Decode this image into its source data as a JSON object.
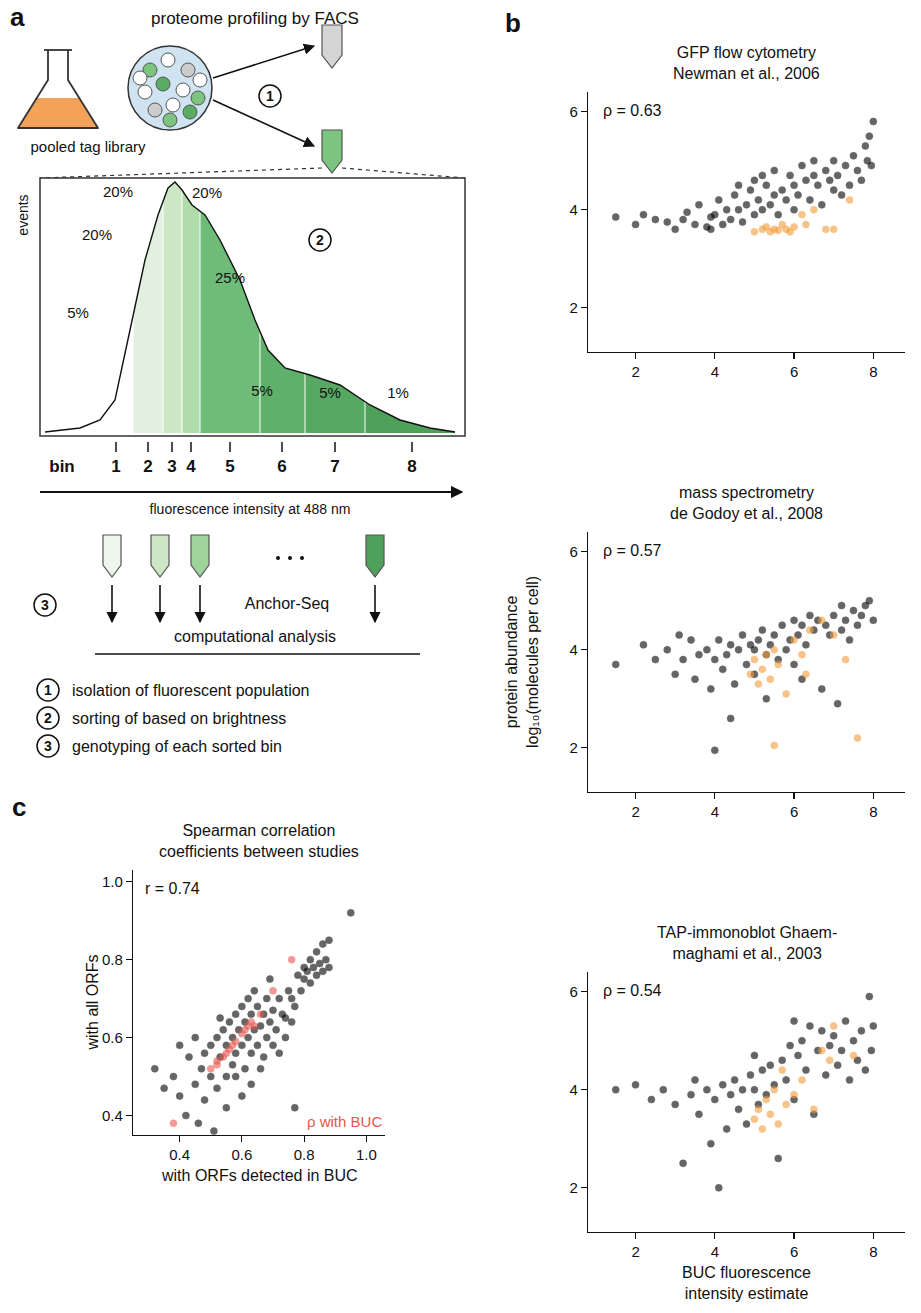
{
  "diagram": {
    "label": "a",
    "title": "proteome profiling by FACS",
    "library_label": "pooled tag library",
    "histogram": {
      "y_label": "events",
      "x_label": "fluorescence intensity at 488 nm",
      "bin_title": "bin",
      "bins": [
        {
          "label": "1",
          "share": "5%"
        },
        {
          "label": "2",
          "share": "20%"
        },
        {
          "label": "3",
          "share": "20%"
        },
        {
          "label": "4",
          "share": "20%"
        },
        {
          "label": "5",
          "share": "25%"
        },
        {
          "label": "6",
          "share": "5%"
        },
        {
          "label": "7",
          "share": "5%"
        },
        {
          "label": "8",
          "share": "1%"
        }
      ]
    },
    "sequencing": "Anchor-Seq",
    "analysis": "computational analysis",
    "steps": [
      {
        "number": "1",
        "text": "isolation of fluorescent population"
      },
      {
        "number": "2",
        "text": "sorting of based on brightness"
      },
      {
        "number": "3",
        "text": "genotyping of each sorted bin"
      }
    ]
  },
  "chart_data": [
    {
      "type": "scatter",
      "panel_label": "b",
      "title": [
        "GFP flow cytometry",
        "Newman et al., 2006"
      ],
      "annotations": [
        "ρ = 0.63"
      ],
      "xlim": [
        0.8,
        8.8
      ],
      "ylim": [
        1.1,
        6.4
      ],
      "xticks": [
        2,
        4,
        6,
        8
      ],
      "yticks": [
        2,
        4,
        6
      ],
      "grid": false,
      "series": [
        {
          "color": "#000000",
          "marker": "circle",
          "x": [
            1.5,
            2.2,
            2.5,
            2.8,
            3.0,
            3.2,
            3.3,
            3.5,
            3.6,
            3.8,
            3.9,
            4.0,
            4.1,
            4.2,
            4.3,
            4.4,
            4.5,
            4.6,
            4.7,
            4.8,
            4.9,
            5.0,
            5.0,
            5.1,
            5.2,
            5.3,
            5.4,
            5.5,
            5.5,
            5.6,
            5.7,
            5.8,
            5.9,
            6.0,
            6.0,
            6.1,
            6.2,
            6.3,
            6.4,
            6.5,
            6.6,
            6.7,
            6.8,
            6.9,
            7.0,
            7.0,
            7.1,
            7.2,
            7.3,
            7.4,
            7.5,
            7.6,
            7.7,
            7.8,
            7.9,
            8.0,
            7.95,
            7.85,
            6.5,
            5.2,
            4.6,
            3.9,
            2.0
          ],
          "y": [
            3.85,
            3.9,
            3.8,
            3.75,
            3.6,
            3.8,
            3.95,
            3.7,
            4.1,
            3.65,
            3.85,
            3.9,
            4.2,
            3.7,
            4.0,
            3.8,
            4.3,
            4.0,
            3.75,
            4.1,
            4.4,
            3.9,
            4.6,
            4.2,
            4.0,
            4.5,
            4.1,
            4.3,
            4.8,
            3.9,
            4.4,
            4.2,
            4.7,
            4.0,
            4.5,
            4.3,
            4.9,
            4.6,
            4.2,
            4.7,
            4.5,
            4.1,
            4.8,
            4.6,
            4.4,
            5.0,
            4.7,
            4.3,
            4.9,
            4.5,
            5.1,
            4.8,
            4.6,
            5.3,
            5.5,
            5.8,
            4.9,
            5.0,
            5.0,
            4.7,
            4.5,
            3.6,
            3.7
          ]
        },
        {
          "color": "#f39c3a",
          "marker": "circle",
          "x": [
            5.0,
            5.2,
            5.3,
            5.4,
            5.5,
            5.6,
            5.7,
            5.8,
            6.0,
            6.2,
            6.3,
            6.5,
            6.8,
            7.0,
            7.4,
            5.9
          ],
          "y": [
            3.55,
            3.6,
            3.65,
            3.55,
            3.6,
            3.58,
            3.7,
            3.6,
            3.65,
            3.9,
            3.7,
            4.0,
            3.6,
            3.6,
            4.2,
            3.55
          ]
        }
      ]
    },
    {
      "type": "scatter",
      "title": [
        "mass spectrometry",
        "de Godoy et al., 2008"
      ],
      "annotations": [
        "ρ = 0.57"
      ],
      "y_label": [
        "protein abundance",
        "log₁₀(molecules per cell)"
      ],
      "xlim": [
        0.8,
        8.8
      ],
      "ylim": [
        1.1,
        6.4
      ],
      "xticks": [
        2,
        4,
        6,
        8
      ],
      "yticks": [
        2,
        4,
        6
      ],
      "grid": false,
      "series": [
        {
          "color": "#000000",
          "marker": "circle",
          "x": [
            1.5,
            2.2,
            2.5,
            2.8,
            3.0,
            3.2,
            3.4,
            3.5,
            3.6,
            3.8,
            3.9,
            4.0,
            4.0,
            4.1,
            4.2,
            4.3,
            4.4,
            4.5,
            4.6,
            4.7,
            4.8,
            4.9,
            5.0,
            5.0,
            5.1,
            5.2,
            5.3,
            5.4,
            5.5,
            5.6,
            5.7,
            5.8,
            5.9,
            6.0,
            6.0,
            6.1,
            6.2,
            6.3,
            6.4,
            6.5,
            6.6,
            6.7,
            6.8,
            6.9,
            7.0,
            7.1,
            7.2,
            7.3,
            7.4,
            7.5,
            7.6,
            7.7,
            7.8,
            7.9,
            8.0,
            7.2,
            6.2,
            5.3,
            4.4,
            3.1
          ],
          "y": [
            3.7,
            4.1,
            3.8,
            4.0,
            3.5,
            3.8,
            4.2,
            3.4,
            3.9,
            4.0,
            3.2,
            1.95,
            3.8,
            4.2,
            3.6,
            3.9,
            4.1,
            3.3,
            4.0,
            4.3,
            3.7,
            4.1,
            4.0,
            3.5,
            4.2,
            4.4,
            3.9,
            4.1,
            4.3,
            3.8,
            4.5,
            4.0,
            4.2,
            4.6,
            3.7,
            4.3,
            4.5,
            4.1,
            4.7,
            4.4,
            4.6,
            3.2,
            4.5,
            4.3,
            4.7,
            2.9,
            4.4,
            4.6,
            4.2,
            4.8,
            4.5,
            4.7,
            4.9,
            5.0,
            4.6,
            4.9,
            3.4,
            3.0,
            2.6,
            4.3
          ]
        },
        {
          "color": "#f39c3a",
          "marker": "circle",
          "x": [
            4.9,
            5.0,
            5.1,
            5.2,
            5.3,
            5.4,
            5.5,
            5.5,
            5.6,
            5.8,
            6.0,
            6.2,
            6.4,
            6.7,
            7.0,
            7.3,
            7.6,
            6.3
          ],
          "y": [
            3.5,
            3.8,
            3.3,
            3.6,
            3.9,
            3.4,
            2.05,
            4.0,
            3.7,
            3.1,
            4.2,
            3.9,
            4.4,
            4.6,
            4.3,
            3.8,
            2.2,
            3.5
          ]
        }
      ]
    },
    {
      "type": "scatter",
      "title": [
        "TAP-immonoblot Ghaem-",
        "maghami et al., 2003"
      ],
      "annotations": [
        "ρ = 0.54"
      ],
      "x_label": [
        "BUC fluorescence",
        "intensity estimate"
      ],
      "xlim": [
        0.8,
        8.8
      ],
      "ylim": [
        1.1,
        6.4
      ],
      "xticks": [
        2,
        4,
        6,
        8
      ],
      "yticks": [
        2,
        4,
        6
      ],
      "grid": false,
      "series": [
        {
          "color": "#000000",
          "marker": "circle",
          "x": [
            1.5,
            2.0,
            2.4,
            2.7,
            3.0,
            3.2,
            3.4,
            3.6,
            3.8,
            3.9,
            4.0,
            4.1,
            4.2,
            4.3,
            4.4,
            4.5,
            4.6,
            4.7,
            4.8,
            4.9,
            5.0,
            5.1,
            5.2,
            5.3,
            5.4,
            5.5,
            5.6,
            5.7,
            5.8,
            5.9,
            6.0,
            6.1,
            6.2,
            6.3,
            6.4,
            6.5,
            6.6,
            6.7,
            6.8,
            6.9,
            7.0,
            7.1,
            7.2,
            7.3,
            7.4,
            7.5,
            7.6,
            7.7,
            7.8,
            7.9,
            8.0,
            7.95,
            6.0,
            5.0,
            3.5
          ],
          "y": [
            4.0,
            4.1,
            3.8,
            4.0,
            3.7,
            2.5,
            3.9,
            3.5,
            4.0,
            2.9,
            3.8,
            2.0,
            4.1,
            3.2,
            3.9,
            4.2,
            3.6,
            4.0,
            3.3,
            4.3,
            4.0,
            3.7,
            4.4,
            3.9,
            4.5,
            4.1,
            2.6,
            4.6,
            4.2,
            4.9,
            3.8,
            4.7,
            5.0,
            4.4,
            5.3,
            3.5,
            4.8,
            5.2,
            4.3,
            4.9,
            5.1,
            4.5,
            4.8,
            5.4,
            4.2,
            5.0,
            4.6,
            5.2,
            4.4,
            5.9,
            5.3,
            4.8,
            5.4,
            4.7,
            4.2
          ]
        },
        {
          "color": "#f39c3a",
          "marker": "circle",
          "x": [
            5.0,
            5.1,
            5.2,
            5.3,
            5.4,
            5.5,
            5.6,
            5.8,
            6.0,
            6.2,
            6.5,
            6.7,
            6.9,
            7.0,
            7.5,
            5.7
          ],
          "y": [
            3.4,
            3.6,
            3.2,
            3.8,
            3.5,
            4.0,
            3.3,
            3.7,
            3.9,
            4.2,
            3.6,
            4.8,
            4.6,
            5.3,
            4.7,
            4.4
          ]
        }
      ]
    },
    {
      "type": "scatter",
      "panel_label": "c",
      "title": [
        "Spearman correlation",
        "coefficients between studies"
      ],
      "annotations": [
        "r = 0.74"
      ],
      "x_label": "with ORFs detected in BUC",
      "y_label": "with all ORFs",
      "xlim": [
        0.25,
        1.06
      ],
      "ylim": [
        0.35,
        1.03
      ],
      "xticks": [
        0.4,
        0.6,
        0.8,
        {
          "value": 1.0,
          "label": "1.0"
        }
      ],
      "yticks": [
        0.4,
        0.6,
        0.8,
        {
          "value": 1.0,
          "label": "1.0"
        }
      ],
      "grid": false,
      "series": [
        {
          "color": "#000000",
          "marker": "circle",
          "x": [
            0.32,
            0.35,
            0.38,
            0.4,
            0.42,
            0.43,
            0.45,
            0.46,
            0.47,
            0.48,
            0.5,
            0.5,
            0.51,
            0.52,
            0.52,
            0.53,
            0.54,
            0.55,
            0.55,
            0.56,
            0.57,
            0.57,
            0.58,
            0.58,
            0.59,
            0.6,
            0.6,
            0.61,
            0.61,
            0.62,
            0.62,
            0.63,
            0.63,
            0.64,
            0.64,
            0.65,
            0.65,
            0.66,
            0.67,
            0.67,
            0.68,
            0.68,
            0.69,
            0.7,
            0.7,
            0.71,
            0.72,
            0.72,
            0.73,
            0.74,
            0.75,
            0.76,
            0.77,
            0.78,
            0.77,
            0.79,
            0.8,
            0.8,
            0.81,
            0.82,
            0.82,
            0.83,
            0.84,
            0.84,
            0.85,
            0.86,
            0.86,
            0.87,
            0.88,
            0.88,
            0.95,
            0.6,
            0.55,
            0.45,
            0.4,
            0.66,
            0.74,
            0.58,
            0.53,
            0.48,
            0.69,
            0.76,
            0.63
          ],
          "y": [
            0.52,
            0.47,
            0.5,
            0.45,
            0.4,
            0.55,
            0.48,
            0.38,
            0.52,
            0.56,
            0.5,
            0.58,
            0.36,
            0.6,
            0.47,
            0.55,
            0.62,
            0.5,
            0.58,
            0.64,
            0.53,
            0.6,
            0.66,
            0.56,
            0.62,
            0.58,
            0.68,
            0.52,
            0.64,
            0.6,
            0.7,
            0.56,
            0.66,
            0.62,
            0.72,
            0.58,
            0.68,
            0.63,
            0.55,
            0.66,
            0.6,
            0.7,
            0.64,
            0.58,
            0.67,
            0.62,
            0.7,
            0.56,
            0.66,
            0.6,
            0.72,
            0.64,
            0.68,
            0.76,
            0.42,
            0.72,
            0.78,
            0.75,
            0.77,
            0.74,
            0.8,
            0.78,
            0.76,
            0.82,
            0.79,
            0.77,
            0.84,
            0.8,
            0.78,
            0.85,
            0.92,
            0.45,
            0.42,
            0.6,
            0.58,
            0.52,
            0.65,
            0.5,
            0.65,
            0.44,
            0.75,
            0.7,
            0.48
          ]
        },
        {
          "name": "ρ with BUC",
          "color": "#e8574f",
          "marker": "circle",
          "x": [
            0.38,
            0.5,
            0.52,
            0.52,
            0.54,
            0.55,
            0.56,
            0.57,
            0.58,
            0.6,
            0.61,
            0.62,
            0.63,
            0.64,
            0.66,
            0.7,
            0.76
          ],
          "y": [
            0.38,
            0.52,
            0.53,
            0.54,
            0.55,
            0.56,
            0.57,
            0.58,
            0.59,
            0.61,
            0.62,
            0.63,
            0.64,
            0.63,
            0.66,
            0.72,
            0.8
          ]
        }
      ]
    }
  ]
}
